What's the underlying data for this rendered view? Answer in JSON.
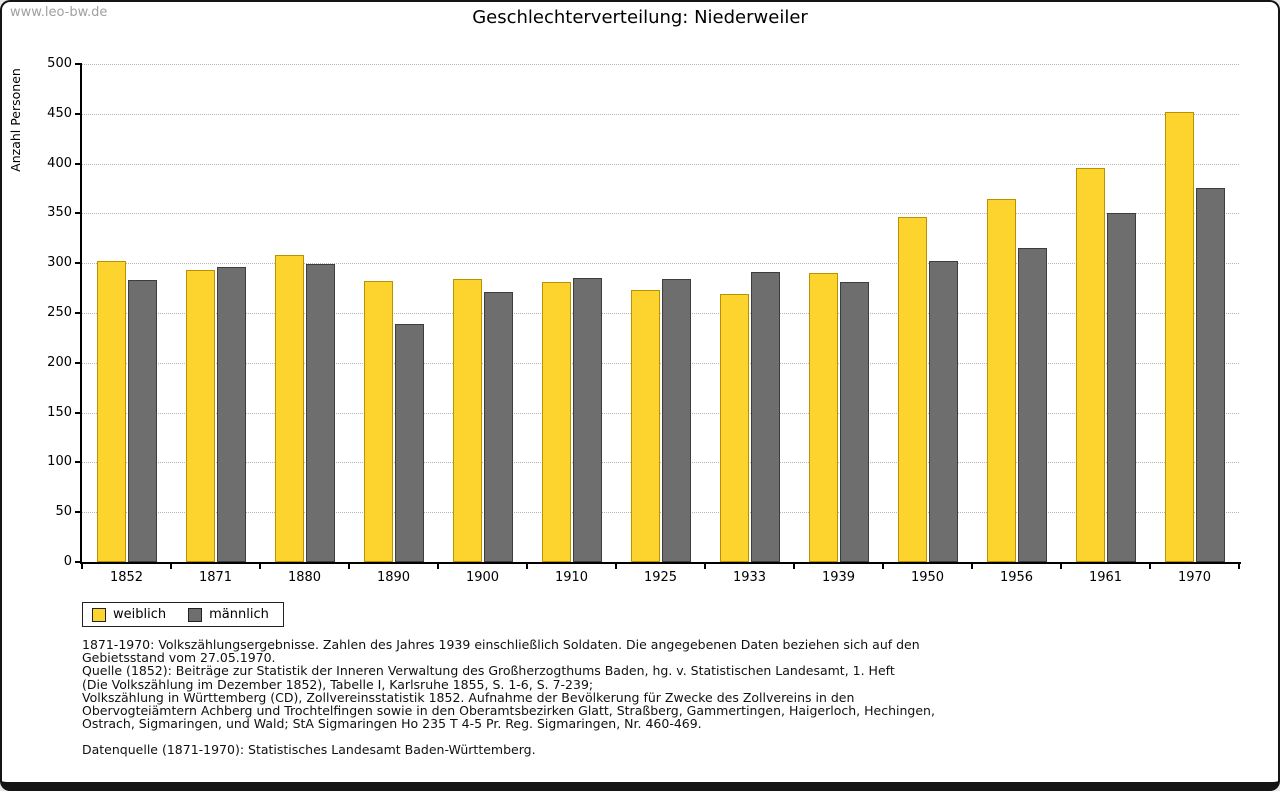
{
  "watermark": "www.leo-bw.de",
  "title": "Geschlechterverteilung: Niederweiler",
  "chart_data": {
    "type": "bar",
    "title": "Geschlechterverteilung: Niederweiler",
    "xlabel": "",
    "ylabel": "Anzahl Personen",
    "ylim": [
      0,
      500
    ],
    "ytick_step": 50,
    "grid": true,
    "legend_position": "bottom-left",
    "categories": [
      "1852",
      "1871",
      "1880",
      "1890",
      "1900",
      "1910",
      "1925",
      "1933",
      "1939",
      "1950",
      "1956",
      "1961",
      "1970"
    ],
    "series": [
      {
        "name": "weiblich",
        "color": "#FCD42D",
        "border": "#B89200",
        "values": [
          302,
          293,
          308,
          282,
          284,
          281,
          273,
          269,
          290,
          346,
          364,
          396,
          452
        ]
      },
      {
        "name": "männlich",
        "color": "#6E6E6E",
        "border": "#3D3D3D",
        "values": [
          283,
          296,
          299,
          239,
          271,
          285,
          284,
          291,
          281,
          302,
          315,
          350,
          376
        ]
      }
    ]
  },
  "footnotes": {
    "lines": [
      "1871-1970: Volkszählungsergebnisse. Zahlen des Jahres 1939 einschließlich Soldaten. Die angegebenen Daten beziehen sich auf den",
      "Gebietsstand vom 27.05.1970.",
      "Quelle (1852): Beiträge zur Statistik der Inneren Verwaltung des Großherzogthums Baden, hg. v. Statistischen Landesamt, 1. Heft",
      "(Die Volkszählung im Dezember 1852), Tabelle I, Karlsruhe 1855, S. 1-6, S. 7-239;",
      "Volkszählung in Württemberg (CD), Zollvereinsstatistik 1852. Aufnahme der Bevölkerung für Zwecke des Zollvereins in den",
      "Obervogteiämtern Achberg und Trochtelfingen sowie in den Oberamtsbezirken Glatt, Straßberg, Gammertingen, Haigerloch, Hechingen,",
      "Ostrach, Sigmaringen, und Wald; StA Sigmaringen Ho 235 T 4-5 Pr. Reg. Sigmaringen, Nr. 460-469."
    ],
    "datasource": "Datenquelle (1871-1970): Statistisches Landesamt Baden-Württemberg."
  }
}
